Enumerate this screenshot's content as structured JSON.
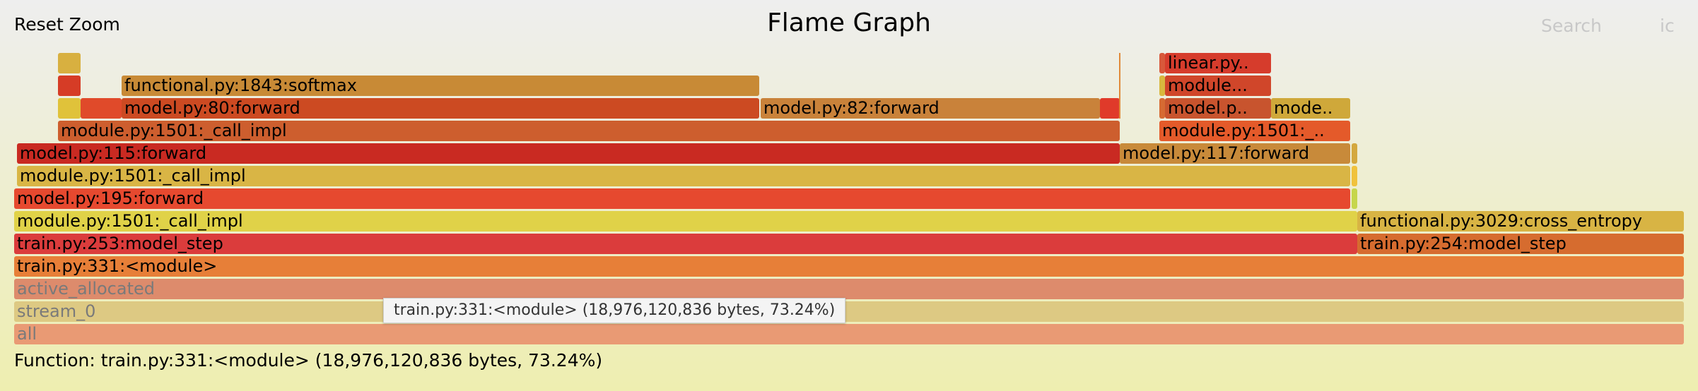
{
  "header": {
    "reset_zoom": "Reset Zoom",
    "title": "Flame Graph",
    "search": "Search",
    "ic": "ic"
  },
  "tooltip": "train.py:331:<module> (18,976,120,836 bytes, 73.24%)",
  "details": "Function: train.py:331:<module> (18,976,120,836 bytes, 73.24%)",
  "frames": [
    {
      "label": "all",
      "color": "#e99a74",
      "muted": true
    },
    {
      "label": "stream_0",
      "color": "#ddc983",
      "muted": true
    },
    {
      "label": "active_allocated",
      "color": "#dd8b6c",
      "muted": true
    },
    {
      "label": "train.py:331:<module>",
      "color": "#e77f38"
    },
    {
      "label": "train.py:253:model_step",
      "color": "#db3c3c"
    },
    {
      "label": "train.py:254:model_step",
      "color": "#d66c2f"
    },
    {
      "label": "module.py:1501:_call_impl",
      "color": "#e0d248"
    },
    {
      "label": "functional.py:3029:cross_entropy",
      "color": "#d8b444"
    },
    {
      "label": "model.py:195:forward",
      "color": "#e6492f"
    },
    {
      "label": "",
      "color": "#c6d64b"
    },
    {
      "label": "module.py:1501:_call_impl",
      "color": "#d9b545"
    },
    {
      "label": "",
      "color": "#f0c23d"
    },
    {
      "label": "model.py:115:forward",
      "color": "#c92a22"
    },
    {
      "label": "model.py:117:forward",
      "color": "#c88a3a"
    },
    {
      "label": "",
      "color": "#d4a83e"
    },
    {
      "label": "module.py:1501:_call_impl",
      "color": "#cd5e2e"
    },
    {
      "label": "module.py:1501:_..",
      "color": "#e45a2a"
    },
    {
      "label": "",
      "color": "#e0c23a"
    },
    {
      "label": "",
      "color": "#e04a2a"
    },
    {
      "label": "model.py:80:forward",
      "color": "#cc4a22"
    },
    {
      "label": "model.py:82:forward",
      "color": "#c9823a"
    },
    {
      "label": "",
      "color": "#e03a2a"
    },
    {
      "label": "",
      "color": "#d66a32"
    },
    {
      "label": "model.p..",
      "color": "#c8542e"
    },
    {
      "label": "mode..",
      "color": "#cfa83a"
    },
    {
      "label": "",
      "color": "#d63c26"
    },
    {
      "label": "functional.py:1843:softmax",
      "color": "#c88a36"
    },
    {
      "label": "",
      "color": "#d8b83e"
    },
    {
      "label": "module...",
      "color": "#d0462a"
    },
    {
      "label": "",
      "color": "#d8b040"
    },
    {
      "label": "",
      "color": "#d8583a"
    },
    {
      "label": "linear.py..",
      "color": "#d63c2c"
    }
  ]
}
